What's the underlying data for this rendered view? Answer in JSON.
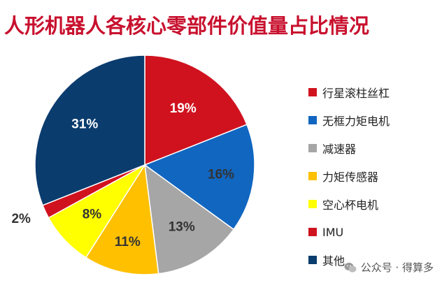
{
  "title": "人形机器人各核心零部件价值量占比情况",
  "watermark": {
    "text": "公众号 · 得算多",
    "icon": "wechat-icon"
  },
  "chart_data": {
    "type": "pie",
    "title": "人形机器人各核心零部件价值量占比情况",
    "start_angle_deg": 0,
    "direction": "clockwise",
    "legend_position": "right",
    "slices": [
      {
        "label": "行星滚柱丝杠",
        "value": 19,
        "display": "19%",
        "color": "#d0121f",
        "label_color": "#ffffff"
      },
      {
        "label": "无框力矩电机",
        "value": 16,
        "display": "16%",
        "color": "#1166c0",
        "label_color": "#333333"
      },
      {
        "label": "减速器",
        "value": 13,
        "display": "13%",
        "color": "#a6a6a6",
        "label_color": "#333333"
      },
      {
        "label": "力矩传感器",
        "value": 11,
        "display": "11%",
        "color": "#ffc000",
        "label_color": "#333333"
      },
      {
        "label": "空心杯电机",
        "value": 8,
        "display": "8%",
        "color": "#ffff00",
        "label_color": "#333333"
      },
      {
        "label": "IMU",
        "value": 2,
        "display": "2%",
        "color": "#d0121f",
        "label_color": "#333333"
      },
      {
        "label": "其他",
        "value": 31,
        "display": "31%",
        "color": "#0b3c6e",
        "label_color": "#ffffff"
      }
    ]
  }
}
